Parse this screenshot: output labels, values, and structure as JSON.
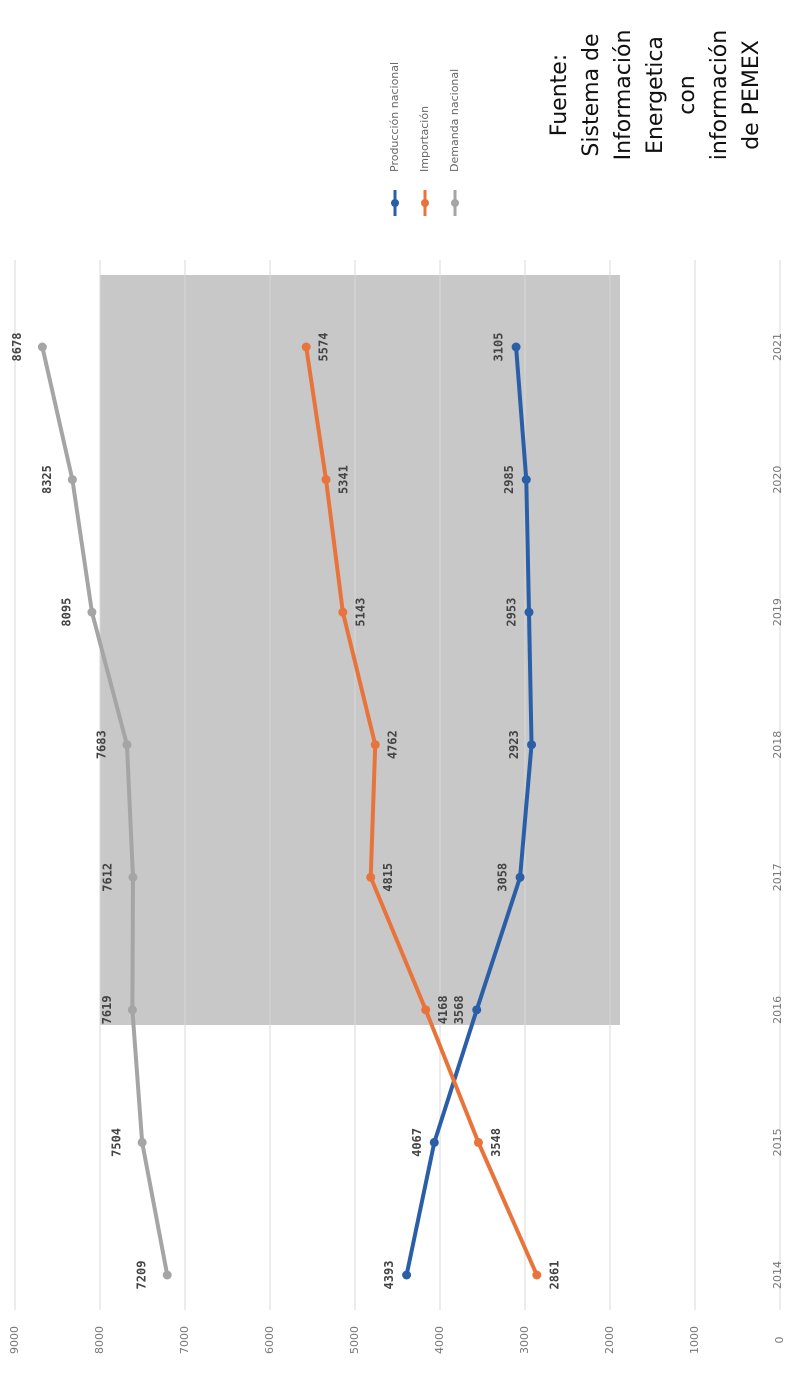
{
  "chart_data": {
    "type": "line",
    "x": [
      2014,
      2015,
      2016,
      2017,
      2018,
      2019,
      2020,
      2021
    ],
    "series": [
      {
        "name": "Producción nacional",
        "color": "#2a5fa8",
        "values": [
          4393,
          4067,
          3568,
          3058,
          2923,
          2953,
          2985,
          3105
        ]
      },
      {
        "name": "Importación",
        "color": "#e8743b",
        "values": [
          2861,
          3548,
          4168,
          4815,
          4762,
          5143,
          5341,
          5574
        ]
      },
      {
        "name": "Demanda nacional",
        "color": "#a5a5a5",
        "values": [
          7209,
          7504,
          7619,
          7612,
          7683,
          8095,
          8325,
          8678
        ]
      }
    ],
    "ylim": [
      0,
      9000
    ],
    "yticks": [
      0,
      1000,
      2000,
      3000,
      4000,
      5000,
      6000,
      7000,
      8000,
      9000
    ],
    "xlim": [
      2014,
      2021
    ],
    "xticks": [
      2014,
      2015,
      2016,
      2017,
      2018,
      2019,
      2020,
      2021
    ],
    "grid": true,
    "legend": "top",
    "source": [
      "Fuente:",
      "Sistema de",
      "Información",
      "Energetica",
      "con",
      "información",
      "de PEMEX"
    ]
  }
}
